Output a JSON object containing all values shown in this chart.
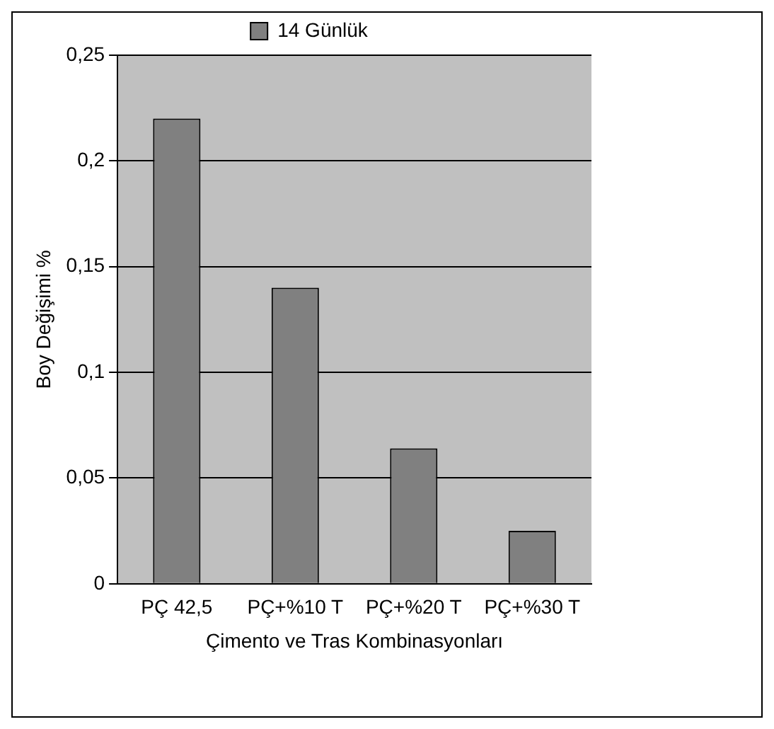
{
  "chart_data": {
    "type": "bar",
    "xlabel": "Çimento ve Tras Kombinasyonları",
    "ylabel": "Boy Değişimi %",
    "categories": [
      "PÇ 42,5",
      "PÇ+%10 T",
      "PÇ+%20 T",
      "PÇ+%30 T"
    ],
    "series": [
      {
        "name": "14 Günlük",
        "color": "#808080",
        "values": [
          0.22,
          0.14,
          0.064,
          0.025
        ]
      }
    ],
    "ylim": [
      0,
      0.25
    ],
    "yticks": [
      0,
      {
        "value": 0.05,
        "label": "0,05"
      },
      {
        "value": 0.1,
        "label": "0,1"
      },
      {
        "value": 0.15,
        "label": "0,15"
      },
      {
        "value": 0.2,
        "label": "0,2"
      },
      {
        "value": 0.25,
        "label": "0,25"
      }
    ],
    "grid": "y",
    "legend": "top"
  }
}
